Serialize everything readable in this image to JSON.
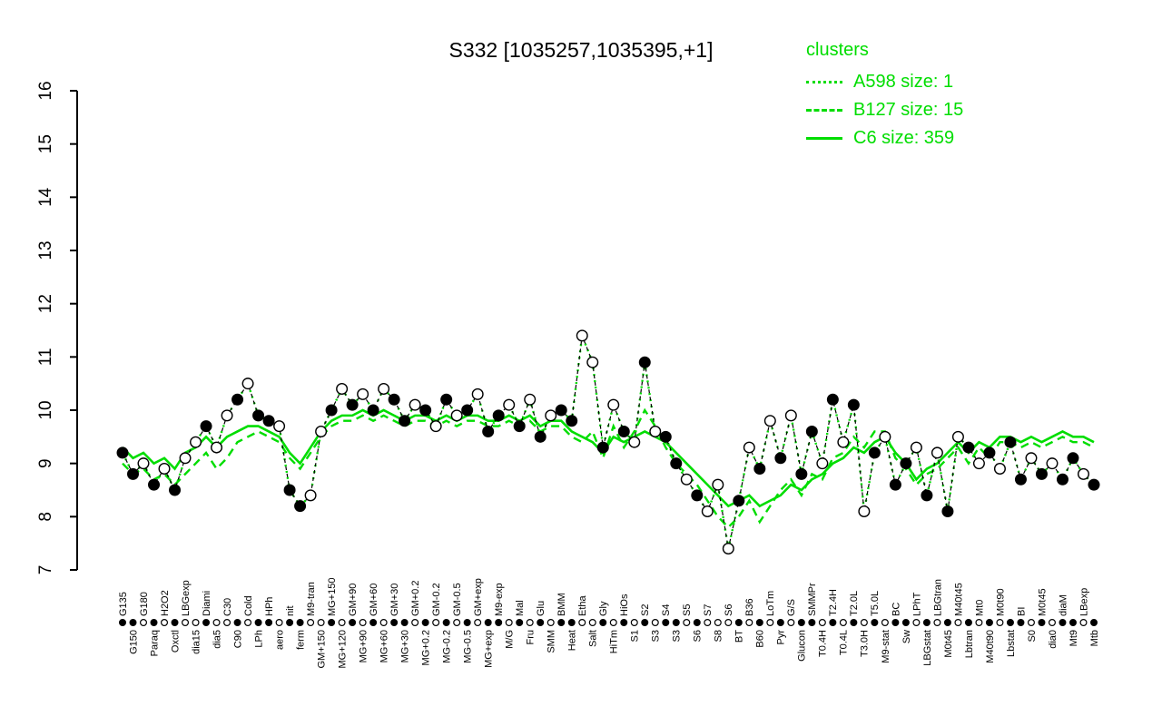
{
  "title": "S332 [1035257,1035395,+1]",
  "legend": {
    "heading": "clusters",
    "color": "#00dd00",
    "items": [
      {
        "label": "A598 size: 1",
        "style": "dotted"
      },
      {
        "label": "B127 size: 15",
        "style": "dashed"
      },
      {
        "label": "C6 size: 359",
        "style": "solid"
      }
    ]
  },
  "chart_data": {
    "type": "line",
    "title": "S332 [1035257,1035395,+1]",
    "ylim": [
      7,
      16
    ],
    "yticks": [
      7,
      8,
      9,
      10,
      11,
      12,
      13,
      14,
      15,
      16
    ],
    "grid": false,
    "legend_position": "top-right",
    "categories": [
      "G135",
      "G150",
      "G180",
      "Paraq",
      "H2O2",
      "Oxctl",
      "LBGexp",
      "dia15",
      "Diami",
      "dia5",
      "C30",
      "C90",
      "Cold",
      "LPh",
      "HPh",
      "aero",
      "nit",
      "ferm",
      "M9-tran",
      "GM+150",
      "MG+150",
      "MG+120",
      "GM+90",
      "MG+90",
      "GM+60",
      "MG+60",
      "GM+30",
      "MG+30",
      "GM+0.2",
      "MG+0.2",
      "GM-0.2",
      "MG-0.2",
      "GM-0.5",
      "MG-0.5",
      "GM+exp",
      "MG+exp",
      "M9-exp",
      "M/G",
      "Mal",
      "Fru",
      "Glu",
      "SMM",
      "BMM",
      "Heat",
      "Etha",
      "Salt",
      "Gly",
      "HiTm",
      "HiOs",
      "S1",
      "S2",
      "S3",
      "S4",
      "S3",
      "S5",
      "S6",
      "S7",
      "S8",
      "S6",
      "BT",
      "B36",
      "B60",
      "LoTm",
      "Pyr",
      "G/S",
      "Glucon",
      "SMMPr",
      "T0.4H",
      "T2.4H",
      "T0.4L",
      "T2.0L",
      "T3.0H",
      "T5.0L",
      "M9-stat",
      "BC",
      "Sw",
      "LPhT",
      "LBGstat",
      "LBGtran",
      "M0t45",
      "M40t45",
      "Lbtran",
      "Mt0",
      "M40t90",
      "M0t90",
      "Lbstat",
      "BI",
      "S0",
      "M0t45",
      "dia0",
      "diaM",
      "Mt9",
      "LBexp",
      "Mtb"
    ],
    "series": [
      {
        "name": "S332",
        "role": "gene-points",
        "marker": "circle",
        "line": "black-dashed",
        "values": [
          9.2,
          8.8,
          9.0,
          8.6,
          8.9,
          8.5,
          9.1,
          9.4,
          9.7,
          9.3,
          9.9,
          10.2,
          10.5,
          9.9,
          9.8,
          9.7,
          8.5,
          8.2,
          8.4,
          9.6,
          10.0,
          10.4,
          10.1,
          10.3,
          10.0,
          10.4,
          10.2,
          9.8,
          10.1,
          10.0,
          9.7,
          10.2,
          9.9,
          10.0,
          10.3,
          9.6,
          9.9,
          10.1,
          9.7,
          10.2,
          9.5,
          9.9,
          10.0,
          9.8,
          11.4,
          10.9,
          9.3,
          10.1,
          9.6,
          9.4,
          10.9,
          9.6,
          9.5,
          9.0,
          8.7,
          8.4,
          8.1,
          8.6,
          7.4,
          8.3,
          9.3,
          8.9,
          9.8,
          9.1,
          9.9,
          8.8,
          9.6,
          9.0,
          10.2,
          9.4,
          10.1,
          8.1,
          9.2,
          9.5,
          8.6,
          9.0,
          9.3,
          8.4,
          9.2,
          8.1,
          9.5,
          9.3,
          9.0,
          9.2,
          8.9,
          9.4,
          8.7,
          9.1,
          8.8,
          9.0,
          8.7,
          9.1,
          8.8,
          8.6
        ],
        "filled": [
          1,
          1,
          0,
          1,
          0,
          1,
          0,
          0,
          1,
          0,
          0,
          1,
          0,
          1,
          1,
          0,
          1,
          1,
          0,
          0,
          1,
          0,
          1,
          0,
          1,
          0,
          1,
          1,
          0,
          1,
          0,
          1,
          0,
          1,
          0,
          1,
          1,
          0,
          1,
          0,
          1,
          0,
          1,
          1,
          0,
          0,
          1,
          0,
          1,
          0,
          1,
          0,
          1,
          1,
          0,
          1,
          0,
          0,
          0,
          1,
          0,
          1,
          0,
          1,
          0,
          1,
          1,
          0,
          1,
          0,
          1,
          0,
          1,
          0,
          1,
          1,
          0,
          1,
          0,
          1,
          0,
          1,
          0,
          1,
          0,
          1,
          1,
          0,
          1,
          0,
          1,
          1,
          0,
          1
        ]
      },
      {
        "name": "A598",
        "size": 1,
        "style": "dotted",
        "color": "#00dd00",
        "values": [
          9.2,
          8.8,
          9.0,
          8.6,
          8.9,
          8.5,
          9.1,
          9.4,
          9.7,
          9.3,
          9.9,
          10.2,
          10.5,
          9.9,
          9.8,
          9.7,
          8.5,
          8.2,
          8.4,
          9.6,
          10.0,
          10.4,
          10.1,
          10.3,
          10.0,
          10.4,
          10.2,
          9.8,
          10.1,
          10.0,
          9.7,
          10.2,
          9.9,
          10.0,
          10.3,
          9.6,
          9.9,
          10.1,
          9.7,
          10.2,
          9.5,
          9.9,
          10.0,
          9.8,
          11.4,
          10.9,
          9.3,
          10.1,
          9.6,
          9.4,
          10.9,
          9.6,
          9.5,
          9.0,
          8.7,
          8.4,
          8.1,
          8.6,
          7.4,
          8.3,
          9.3,
          8.9,
          9.8,
          9.1,
          9.9,
          8.8,
          9.6,
          9.0,
          10.2,
          9.4,
          10.1,
          8.1,
          9.2,
          9.5,
          8.6,
          9.0,
          9.3,
          8.4,
          9.2,
          8.1,
          9.5,
          9.3,
          9.0,
          9.2,
          8.9,
          9.4,
          8.7,
          9.1,
          8.8,
          9.0,
          8.7,
          9.1,
          8.8,
          8.6
        ]
      },
      {
        "name": "B127",
        "size": 15,
        "style": "dashed",
        "color": "#00dd00",
        "values": [
          9.0,
          8.8,
          8.9,
          8.7,
          8.8,
          8.6,
          8.8,
          9.0,
          9.2,
          8.9,
          9.1,
          9.4,
          9.5,
          9.6,
          9.5,
          9.4,
          9.1,
          8.9,
          9.2,
          9.5,
          9.7,
          9.8,
          9.8,
          9.9,
          9.8,
          9.9,
          9.8,
          9.7,
          9.8,
          9.8,
          9.7,
          9.8,
          9.7,
          9.8,
          9.8,
          9.7,
          9.7,
          9.8,
          9.7,
          9.8,
          9.6,
          9.7,
          9.7,
          9.5,
          9.4,
          9.6,
          9.1,
          9.7,
          9.3,
          9.6,
          10.0,
          9.7,
          9.3,
          9.0,
          8.8,
          8.6,
          8.3,
          8.0,
          7.8,
          8.0,
          8.3,
          7.9,
          8.2,
          8.5,
          8.7,
          8.4,
          8.8,
          8.7,
          9.1,
          9.2,
          9.5,
          9.3,
          9.6,
          9.6,
          9.1,
          8.9,
          8.6,
          8.8,
          8.9,
          9.1,
          9.3,
          9.0,
          9.3,
          9.1,
          9.4,
          9.4,
          9.3,
          9.4,
          9.3,
          9.4,
          9.5,
          9.4,
          9.4,
          9.3
        ]
      },
      {
        "name": "C6",
        "size": 359,
        "style": "solid",
        "color": "#00dd00",
        "values": [
          9.3,
          9.1,
          9.2,
          9.0,
          9.1,
          8.9,
          9.2,
          9.3,
          9.5,
          9.3,
          9.5,
          9.6,
          9.7,
          9.7,
          9.6,
          9.5,
          9.2,
          9.0,
          9.3,
          9.6,
          9.8,
          9.9,
          9.9,
          10.0,
          9.9,
          10.0,
          9.9,
          9.8,
          9.9,
          9.9,
          9.8,
          9.9,
          9.8,
          9.9,
          9.9,
          9.8,
          9.8,
          9.9,
          9.8,
          9.9,
          9.7,
          9.8,
          9.8,
          9.6,
          9.5,
          9.4,
          9.2,
          9.5,
          9.4,
          9.5,
          9.6,
          9.5,
          9.4,
          9.2,
          9.0,
          8.8,
          8.6,
          8.4,
          8.2,
          8.3,
          8.4,
          8.2,
          8.3,
          8.4,
          8.6,
          8.5,
          8.7,
          8.8,
          9.0,
          9.1,
          9.3,
          9.2,
          9.4,
          9.5,
          9.2,
          9.0,
          8.7,
          8.9,
          9.0,
          9.2,
          9.4,
          9.2,
          9.4,
          9.3,
          9.5,
          9.5,
          9.4,
          9.5,
          9.4,
          9.5,
          9.6,
          9.5,
          9.5,
          9.4
        ]
      }
    ]
  }
}
